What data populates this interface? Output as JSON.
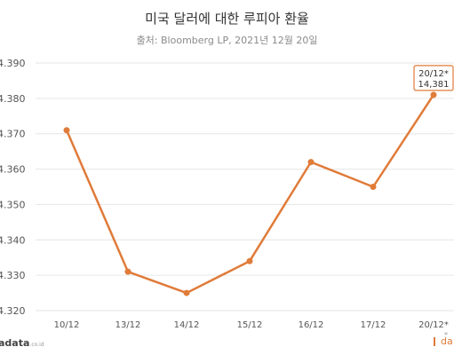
{
  "title": "미국 달러에 대한 루피아 환율",
  "subtitle": "출처: Bloomberg LP, 2021년 12월 20일",
  "brand_left": {
    "name": "adata",
    "domain": ".co.id"
  },
  "brand_right": {
    "name": "da"
  },
  "chart_data": {
    "type": "line",
    "x": [
      "10/12",
      "13/12",
      "14/12",
      "15/12",
      "16/12",
      "17/12",
      "20/12*"
    ],
    "values": [
      14371,
      14331,
      14325,
      14334,
      14362,
      14355,
      14381
    ],
    "ytick_labels": [
      "4.390",
      "4.380",
      "4.370",
      "4.360",
      "4.350",
      "4.340",
      "4.330",
      "4.320"
    ],
    "ylim": [
      14320,
      14390
    ],
    "ytick_step": 10,
    "grid": true,
    "line_color": "#e07b39",
    "callout": {
      "line1": "20/12*",
      "line2": "14,381"
    },
    "footnote": "*"
  }
}
